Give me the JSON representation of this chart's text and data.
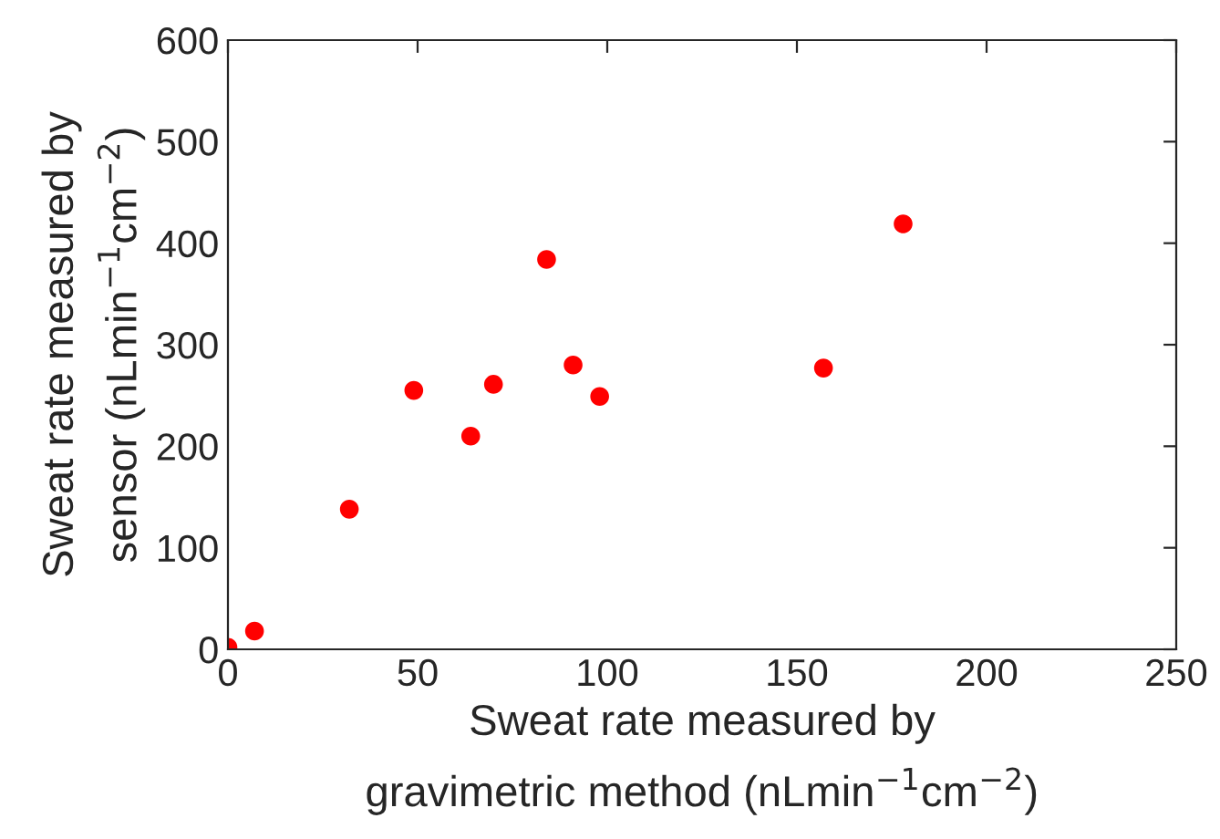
{
  "chart_data": {
    "type": "scatter",
    "xlabel": "Sweat rate measured by\ngravimetric method (nLmin$^{−1}$cm$^{−2}$)",
    "ylabel": "Sweat rate measured by\nsensor (nLmin$^{−1}$cm$^{−2}$)",
    "x": [
      0,
      7,
      32,
      49,
      64,
      70,
      84,
      91,
      98,
      157,
      178
    ],
    "series": [
      {
        "color": "#ff0000",
        "values": [
          2,
          18,
          138,
          255,
          210,
          261,
          384,
          280,
          249,
          277,
          419
        ]
      }
    ],
    "xlim": [
      0,
      250
    ],
    "xticks": [
      0,
      50,
      100,
      150,
      200,
      250
    ],
    "ylim": [
      0,
      600
    ],
    "yticks": [
      0,
      100,
      200,
      300,
      400,
      500,
      600
    ],
    "marker": "circle",
    "grid": false,
    "legend": false
  }
}
